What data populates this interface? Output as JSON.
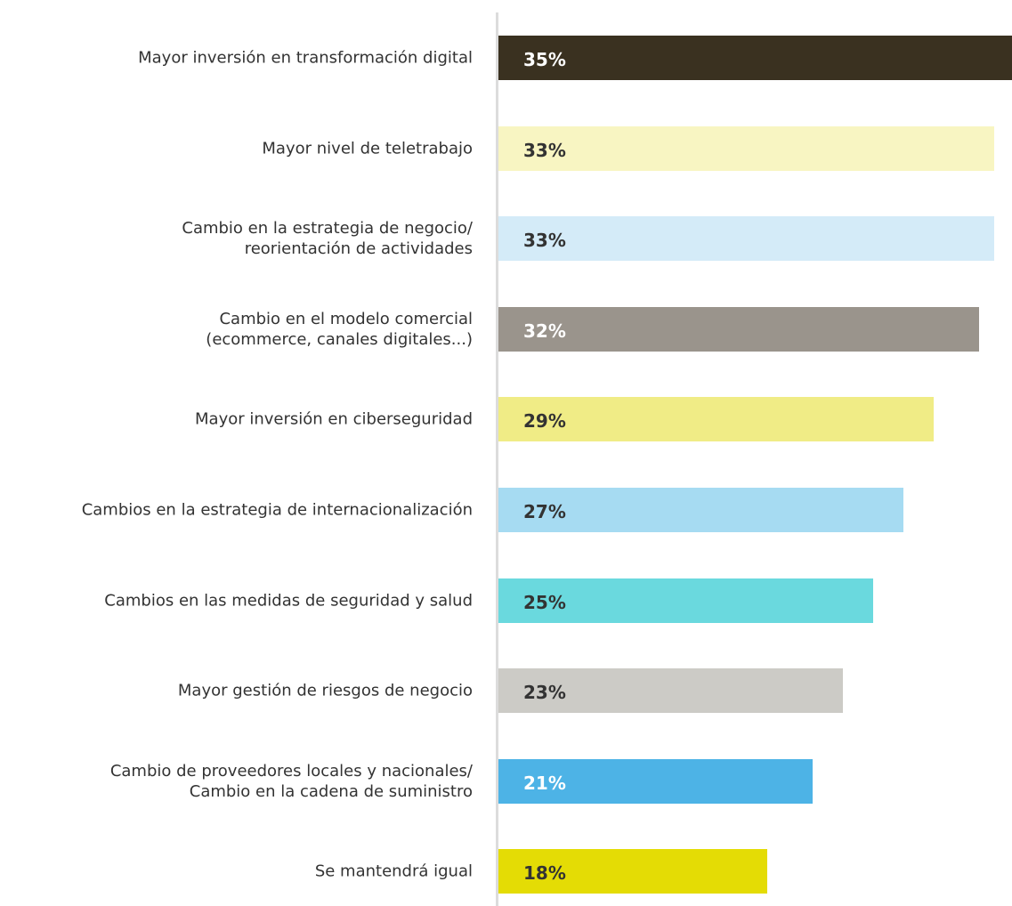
{
  "chart_data": {
    "type": "barh",
    "categories": [
      "Mayor inversión en transformación digital",
      "Mayor nivel de teletrabajo",
      "Cambio en la estrategia de negocio/\nreorientación de actividades",
      "Cambio en el modelo comercial\n(ecommerce, canales digitales...)",
      "Mayor inversión en ciberseguridad",
      "Cambios en la estrategia de internacionalización",
      "Cambios en las medidas de seguridad y salud",
      "Mayor gestión de riesgos de negocio",
      "Cambio de proveedores locales y nacionales/\nCambio en la cadena de suministro",
      "Se mantendrá igual"
    ],
    "values": [
      35,
      33,
      33,
      32,
      29,
      27,
      25,
      23,
      21,
      18
    ],
    "value_labels": [
      "35%",
      "33%",
      "33%",
      "32%",
      "29%",
      "27%",
      "25%",
      "23%",
      "21%",
      "18%"
    ],
    "colors": [
      "#3a3120",
      "#f8f5c2",
      "#d4ebf8",
      "#9a948c",
      "#f0ec86",
      "#a6dbf2",
      "#6ad9de",
      "#cccbc6",
      "#4db3e6",
      "#e4dc05"
    ]
  }
}
